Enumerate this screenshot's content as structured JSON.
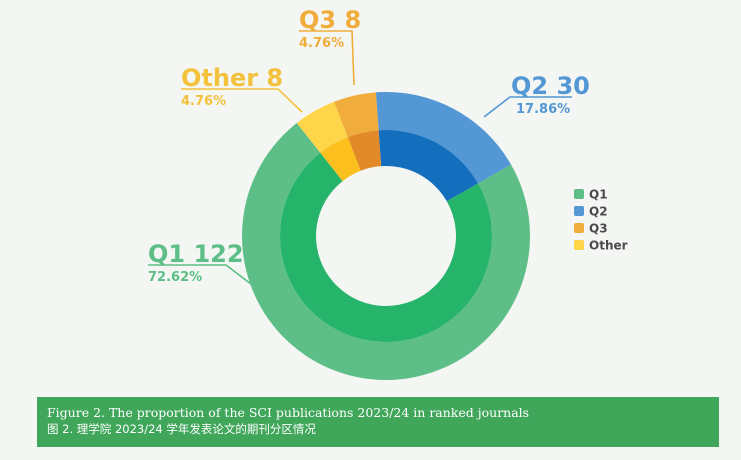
{
  "chart_data": {
    "type": "pie",
    "style": "double-donut",
    "series": [
      {
        "name": "Q1",
        "value": 122,
        "percent": "72.62%",
        "color": "#5dbf87",
        "inner_color": "#26b36a",
        "label_color": "#5dbf87"
      },
      {
        "name": "Q2",
        "value": 30,
        "percent": "17.86%",
        "color": "#5397d4",
        "inner_color": "#136fbd",
        "label_color": "#5397d4"
      },
      {
        "name": "Q3",
        "value": 8,
        "percent": "4.76%",
        "color": "#f0ad3c",
        "inner_color": "#e38a28",
        "label_color": "#f0ad3c"
      },
      {
        "name": "Other",
        "value": 8,
        "percent": "4.76%",
        "color": "#ffd54a",
        "inner_color": "#fbbf1e",
        "label_color": "#f3c13c"
      }
    ],
    "labels": [
      {
        "text": "Q1 122",
        "pct": "72.62%"
      },
      {
        "text": "Q2 30",
        "pct": "17.86%"
      },
      {
        "text": "Q3 8",
        "pct": "4.76%"
      },
      {
        "text": "Other  8",
        "pct": "4.76%"
      }
    ],
    "legend": {
      "position": "right",
      "items": [
        "Q1",
        "Q2",
        "Q3",
        "Other"
      ]
    }
  },
  "caption": {
    "line1": "Figure 2. The proportion of the SCI publications 2023/24 in ranked journals",
    "line2": "图 2. 理学院 2023/24 学年发表论文的期刊分区情况"
  }
}
